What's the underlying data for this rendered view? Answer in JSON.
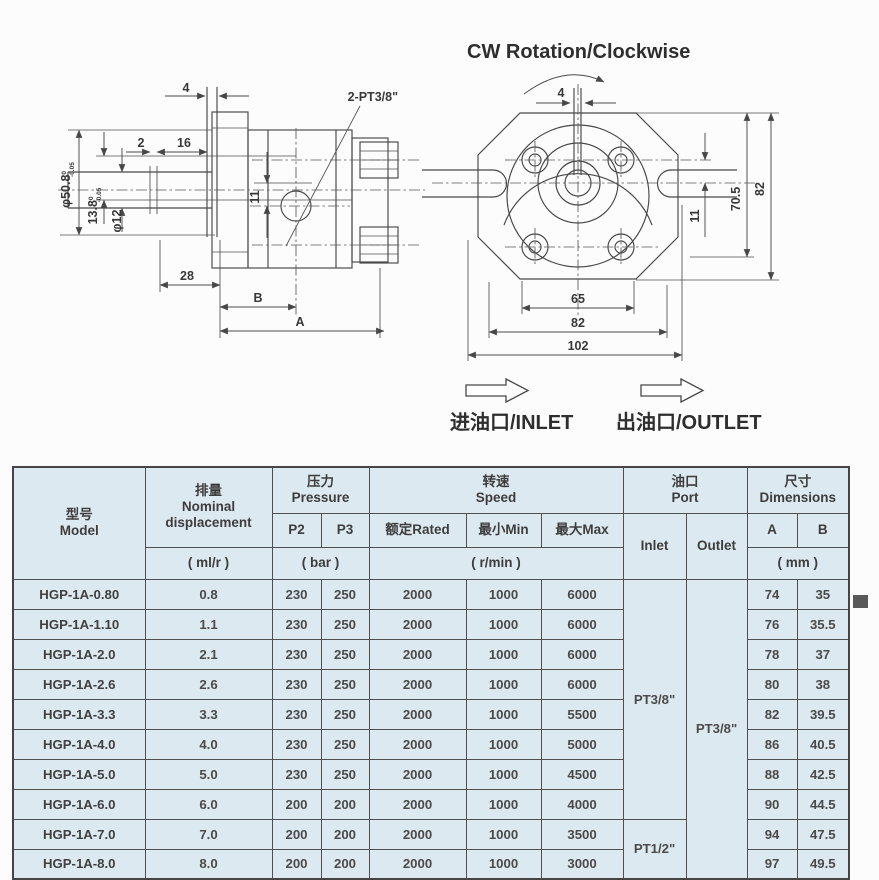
{
  "drawing": {
    "side_view": {
      "dim_key_width": "4",
      "dim_2": "2",
      "dim_16": "16",
      "port_callout": "2-PT3/8\"",
      "dia_pilot": "φ50.8",
      "pilot_tol_upper": "0",
      "pilot_tol_lower": "-0.05",
      "dim_shaft_flat": "13.8",
      "flat_tol_upper": "0",
      "flat_tol_lower": "-0.05",
      "dia_shaft": "φ12",
      "dim_port_offset": "11",
      "dim_28": "28",
      "dim_B": "B",
      "dim_A": "A"
    },
    "front_view": {
      "rotation_note": "CW Rotation/Clockwise",
      "dim_key_width": "4",
      "dim_11": "11",
      "dim_70_5": "70.5",
      "dim_82_height": "82",
      "dim_65": "65",
      "dim_82_width": "82",
      "dim_102": "102"
    },
    "flow": {
      "inlet_label": "进油口/INLET",
      "outlet_label": "出油口/OUTLET"
    }
  },
  "table": {
    "header": {
      "model": "型号\nModel",
      "displacement": "排量\nNominal\ndisplacement",
      "pressure": "压力\nPressure",
      "p2": "P2",
      "p3": "P3",
      "speed": "转速\nSpeed",
      "rated": "额定Rated",
      "min": "最小Min",
      "max": "最大Max",
      "port": "油口\nPort",
      "inlet": "Inlet",
      "outlet": "Outlet",
      "dimensions": "尺寸\nDimensions",
      "a": "A",
      "b": "B",
      "unit_mlr": "( ml/r )",
      "unit_bar": "( bar )",
      "unit_rmin": "( r/min )",
      "unit_mm": "( mm )"
    },
    "rows": [
      {
        "model": "HGP-1A-0.80",
        "displacement": "0.8",
        "p2": "230",
        "p3": "250",
        "rated": "2000",
        "min": "1000",
        "max": "6000",
        "a": "74",
        "b": "35"
      },
      {
        "model": "HGP-1A-1.10",
        "displacement": "1.1",
        "p2": "230",
        "p3": "250",
        "rated": "2000",
        "min": "1000",
        "max": "6000",
        "a": "76",
        "b": "35.5"
      },
      {
        "model": "HGP-1A-2.0",
        "displacement": "2.1",
        "p2": "230",
        "p3": "250",
        "rated": "2000",
        "min": "1000",
        "max": "6000",
        "a": "78",
        "b": "37"
      },
      {
        "model": "HGP-1A-2.6",
        "displacement": "2.6",
        "p2": "230",
        "p3": "250",
        "rated": "2000",
        "min": "1000",
        "max": "6000",
        "a": "80",
        "b": "38"
      },
      {
        "model": "HGP-1A-3.3",
        "displacement": "3.3",
        "p2": "230",
        "p3": "250",
        "rated": "2000",
        "min": "1000",
        "max": "5500",
        "a": "82",
        "b": "39.5"
      },
      {
        "model": "HGP-1A-4.0",
        "displacement": "4.0",
        "p2": "230",
        "p3": "250",
        "rated": "2000",
        "min": "1000",
        "max": "5000",
        "a": "86",
        "b": "40.5"
      },
      {
        "model": "HGP-1A-5.0",
        "displacement": "5.0",
        "p2": "230",
        "p3": "250",
        "rated": "2000",
        "min": "1000",
        "max": "4500",
        "a": "88",
        "b": "42.5"
      },
      {
        "model": "HGP-1A-6.0",
        "displacement": "6.0",
        "p2": "200",
        "p3": "200",
        "rated": "2000",
        "min": "1000",
        "max": "4000",
        "a": "90",
        "b": "44.5"
      },
      {
        "model": "HGP-1A-7.0",
        "displacement": "7.0",
        "p2": "200",
        "p3": "200",
        "rated": "2000",
        "min": "1000",
        "max": "3500",
        "a": "94",
        "b": "47.5"
      },
      {
        "model": "HGP-1A-8.0",
        "displacement": "8.0",
        "p2": "200",
        "p3": "200",
        "rated": "2000",
        "min": "1000",
        "max": "3000",
        "a": "97",
        "b": "49.5"
      }
    ],
    "port_spans": [
      {
        "row": 0,
        "name": "inlet-port-value",
        "rowspan": 8,
        "label": "PT3/8\""
      },
      {
        "row": 0,
        "name": "outlet-port-value",
        "rowspan": 10,
        "label": "PT3/8\""
      },
      {
        "row": 8,
        "name": "inlet-port-value",
        "rowspan": 2,
        "label": "PT1/2\""
      }
    ]
  },
  "colors": {
    "table_background": "#dde9f1",
    "line_color": "#474747",
    "text_color": "#3d3d3d",
    "marker_square": "#595959"
  }
}
